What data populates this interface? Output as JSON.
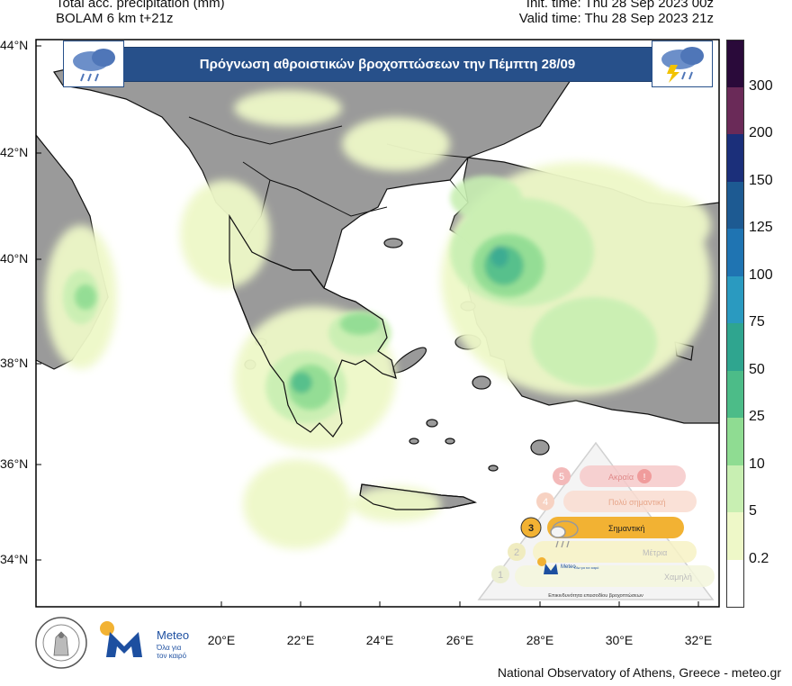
{
  "header": {
    "left_line1": "Total acc. precipitation (mm)",
    "left_line2": "BOLAM 6 km t+21z",
    "right_line1": "Init. time: Thu 28 Sep 2023 00z",
    "right_line2": "Valid time: Thu 28 Sep 2023 21z"
  },
  "banner": {
    "title": "Πρόγνωση αθροιστικών βροχοπτώσεων την Πέμπτη 28/09",
    "left_icon": "rain-cloud-icon",
    "right_icon": "thunderstorm-icon"
  },
  "axes": {
    "lat_labels": [
      "44°N",
      "42°N",
      "40°N",
      "38°N",
      "36°N",
      "34°N"
    ],
    "lon_labels": [
      "20°E",
      "22°E",
      "24°E",
      "26°E",
      "28°E",
      "30°E",
      "32°E"
    ]
  },
  "colorbar": {
    "labels": [
      "300",
      "200",
      "150",
      "125",
      "100",
      "75",
      "50",
      "25",
      "10",
      "5",
      "0.2"
    ],
    "colors": [
      "#2a0a3a",
      "#6a2a58",
      "#1b2f7a",
      "#1d5a92",
      "#1f74b2",
      "#2a9ac0",
      "#2fa58f",
      "#4cbc88",
      "#8fdc92",
      "#c8efb2",
      "#eef8c8",
      "#ffffff"
    ]
  },
  "pyramid": {
    "levels": [
      {
        "num": "5",
        "label": "Ακραία"
      },
      {
        "num": "4",
        "label": "Πολύ σημαντική"
      },
      {
        "num": "3",
        "label": "Σημαντική"
      },
      {
        "num": "2",
        "label": "Μέτρια"
      },
      {
        "num": "1",
        "label": "Χαμηλή"
      }
    ],
    "caption": "Επικινδυνότητα επεισοδίου βροχοπτώσεων",
    "brand": "Meteo",
    "brand_sub": "Όλα για τον καιρό",
    "highlight_level": "3"
  },
  "logo": {
    "brand": "Meteo",
    "sub1": "Όλα για",
    "sub2": "τον καιρό"
  },
  "footer": "National Observatory of Athens, Greece - meteo.gr",
  "colors": {
    "sea": "#ffffff",
    "land": "#9a9a9a",
    "banner": "#27508a",
    "highlight": "#f2b233"
  }
}
